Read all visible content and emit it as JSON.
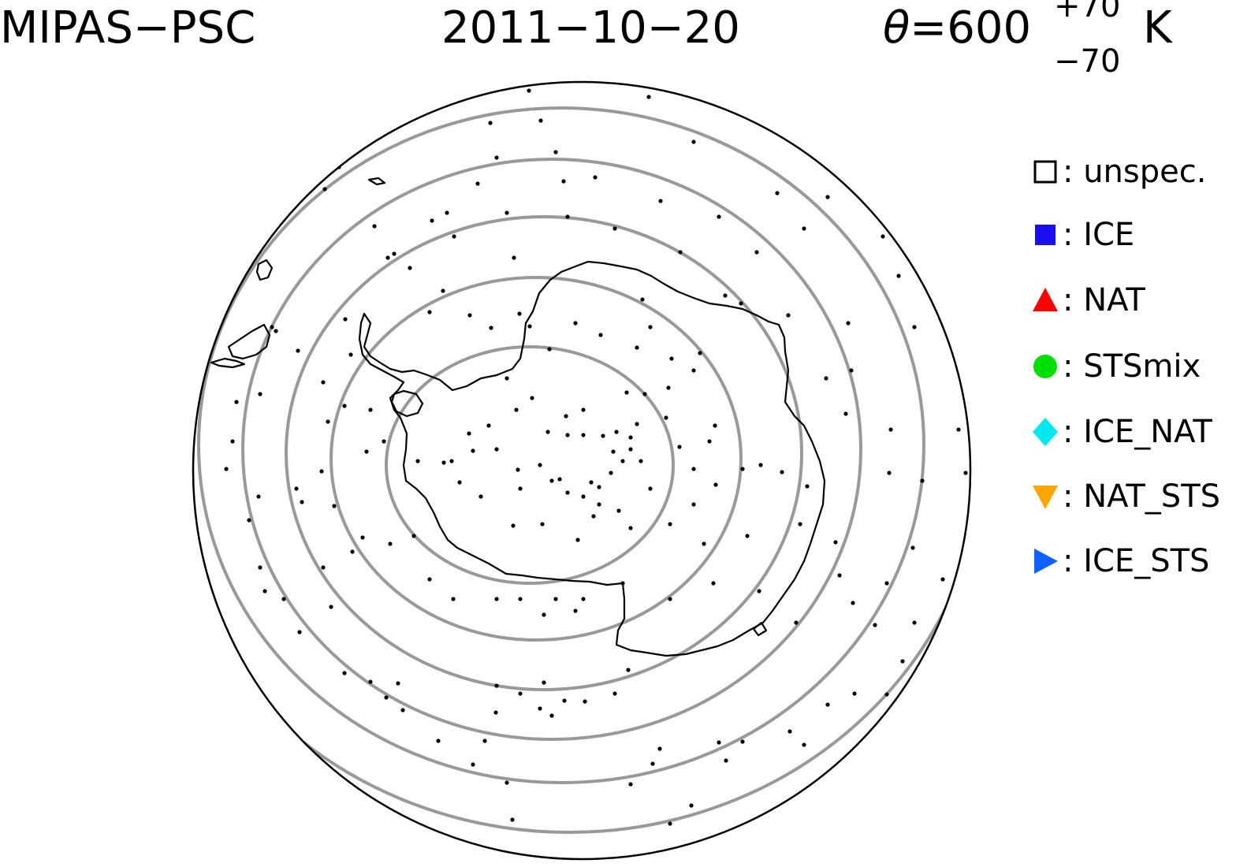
{
  "header": {
    "instrument": "MIPAS−PSC",
    "date": "2011−10−20",
    "theta_symbol": "θ",
    "theta_eq": "=600",
    "theta_plus": "+70",
    "theta_minus": "−70",
    "theta_unit": "K"
  },
  "legend": [
    {
      "label": ": unspec.",
      "symbol": "open-square-icon",
      "color": "#000000"
    },
    {
      "label": ": ICE",
      "symbol": "filled-square-icon",
      "color": "#1a0ff0"
    },
    {
      "label": ": NAT",
      "symbol": "triangle-up-icon",
      "color": "#ff0000"
    },
    {
      "label": ": STSmix",
      "symbol": "circle-icon",
      "color": "#00e000"
    },
    {
      "label": ": ICE_NAT",
      "symbol": "diamond-icon",
      "color": "#00e8f0"
    },
    {
      "label": ": NAT_STS",
      "symbol": "triangle-down-icon",
      "color": "#ffa500"
    },
    {
      "label": ": ICE_STS",
      "symbol": "triangle-right-icon",
      "color": "#1060ff"
    }
  ],
  "map": {
    "projection": "south-polar-stereographic",
    "coastline_color": "#000000",
    "contour_color": "#999999",
    "point_color": "#000000"
  }
}
